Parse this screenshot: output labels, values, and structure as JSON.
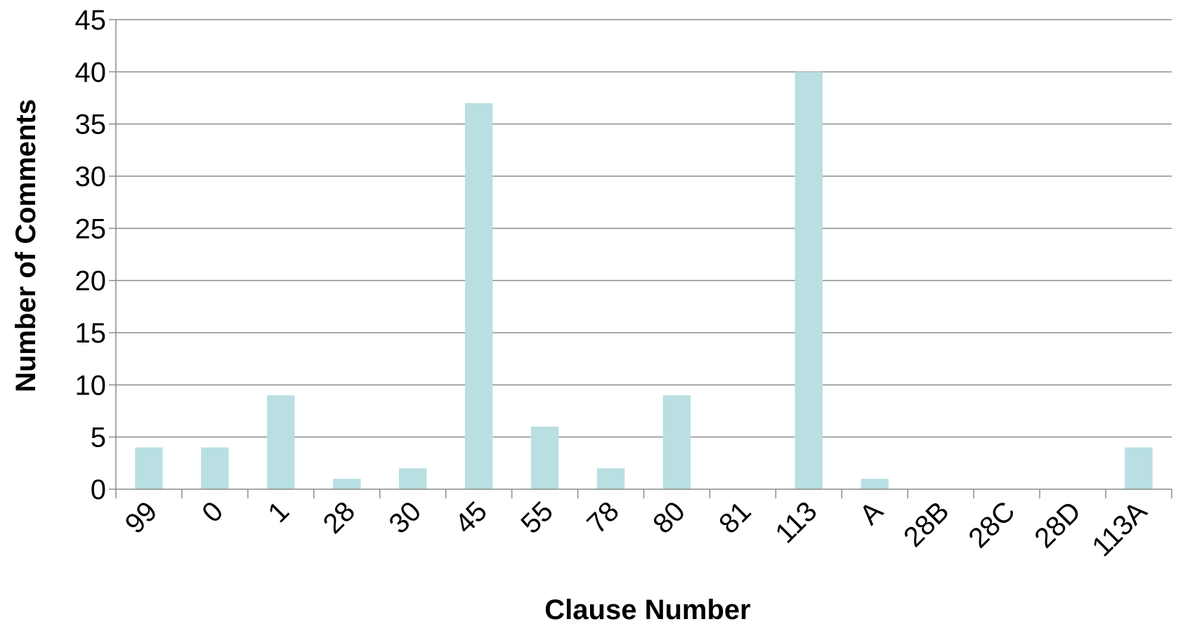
{
  "chart_data": {
    "type": "bar",
    "title": "",
    "xlabel": "Clause Number",
    "ylabel": "Number of Comments",
    "categories": [
      "99",
      "0",
      "1",
      "28",
      "30",
      "45",
      "55",
      "78",
      "80",
      "81",
      "113",
      "A",
      "28B",
      "28C",
      "28D",
      "113A"
    ],
    "values": [
      4,
      4,
      9,
      1,
      2,
      37,
      6,
      2,
      9,
      0,
      40,
      1,
      0,
      0,
      0,
      4
    ],
    "ylim": [
      0,
      45
    ],
    "yticks": [
      0,
      5,
      10,
      15,
      20,
      25,
      30,
      35,
      40,
      45
    ],
    "grid": "horizontal",
    "legend": "none",
    "colors": {
      "bar": "#b9dfe2",
      "grid": "#8c8c8c",
      "axis": "#8c8c8c"
    }
  }
}
